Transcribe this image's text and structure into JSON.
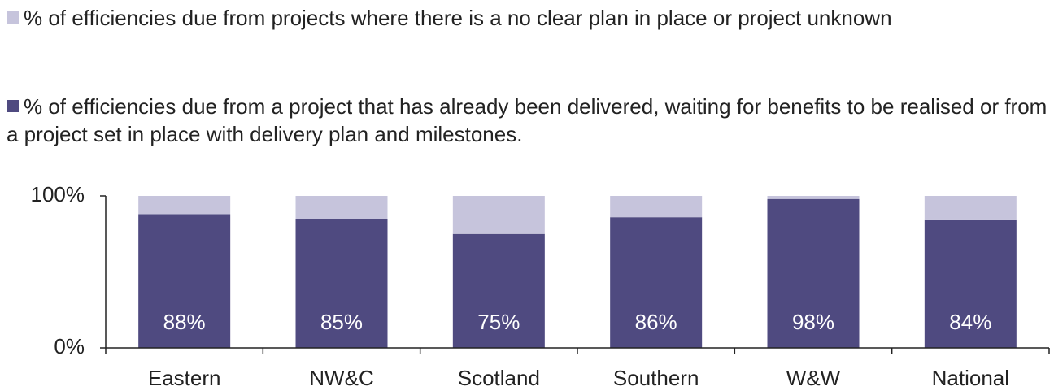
{
  "chart_data": {
    "type": "stacked_bar",
    "categories": [
      "Eastern",
      "NW&C",
      "Scotland",
      "Southern",
      "W&W",
      "National"
    ],
    "series": [
      {
        "name": "% of efficiencies due from a project that has already been delivered, waiting for benefits to be realised or from a project set in place with delivery plan and milestones.",
        "color": "#4f4a80",
        "values": [
          88,
          85,
          75,
          86,
          98,
          84
        ],
        "value_labels": [
          "88%",
          "85%",
          "75%",
          "86%",
          "98%",
          "84%"
        ]
      },
      {
        "name": "% of efficiencies due from projects where there is a no clear plan in place or project unknown",
        "color": "#c6c4dc",
        "values": [
          12,
          15,
          25,
          14,
          2,
          16
        ]
      }
    ],
    "ylim": [
      0,
      100
    ],
    "yticks": [
      {
        "value": 0,
        "label": "0%"
      },
      {
        "value": 100,
        "label": "100%"
      }
    ],
    "grid": false
  }
}
